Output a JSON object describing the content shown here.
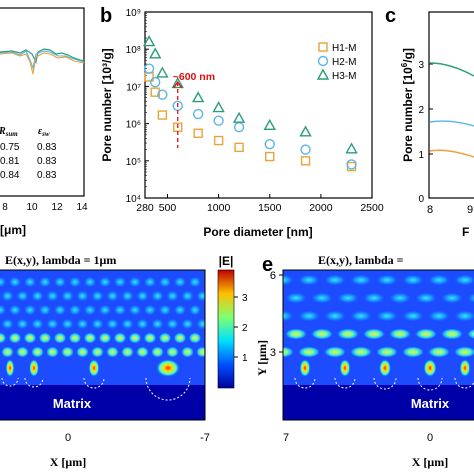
{
  "panel_letters": {
    "b": "b",
    "c": "c",
    "e": "e"
  },
  "panel_a": {
    "x_ticks": [
      "8",
      "10",
      "12",
      "14"
    ],
    "x_label_fragment": "[μm]",
    "table": {
      "headers": [
        "R",
        "ε"
      ],
      "header_subscripts": [
        "sum",
        "sw"
      ],
      "rows": [
        [
          "0.75",
          "0.83"
        ],
        [
          "0.81",
          "0.83"
        ],
        [
          "0.84",
          "0.83"
        ]
      ]
    }
  },
  "panel_c": {
    "ylabel": "Pore number [10",
    "ylabel_sup": "6",
    "ylabel_tail": "/g]",
    "y_ticks": [
      "3",
      "2",
      "1",
      "0"
    ],
    "x_ticks": [
      "8",
      "9"
    ],
    "x_label_fragment": "F"
  },
  "panel_d": {
    "title": "E(x,y),  lambda = 1μm",
    "colorbar_title": "|E|",
    "colorbar_ticks": [
      "3",
      "2",
      "1"
    ],
    "matrix_label": "Matrix",
    "x_ticks": [
      "0",
      "-7"
    ],
    "xlabel": "X [μm]"
  },
  "panel_e": {
    "title": "E(x,y),  lambda =",
    "matrix_label": "Matrix",
    "y_ticks": [
      "6",
      "3"
    ],
    "ylabel": "Y [μm]",
    "x_ticks": [
      "7",
      "0"
    ],
    "xlabel": "X [μm]"
  },
  "chart_data": {
    "type": "scatter",
    "xlabel": "Pore diameter [nm]",
    "ylabel": "Pore number [10³/g]",
    "xlim": [
      280,
      2500
    ],
    "ylim": [
      10000,
      1000000000
    ],
    "y_scale": "log",
    "x_ticks": [
      "280",
      "500",
      "1000",
      "1500",
      "2000",
      "2500"
    ],
    "y_ticks": [
      "10⁴",
      "10⁵",
      "10⁶",
      "10⁷",
      "10⁸",
      "10⁹"
    ],
    "annotation": "~600 nm",
    "annotation_x": 600,
    "legend_position": "top-right",
    "series": [
      {
        "name": "H1-M",
        "marker": "square",
        "color": "#e8a33a",
        "x": [
          320,
          380,
          450,
          600,
          800,
          1000,
          1200,
          1500,
          1850,
          2300
        ],
        "y": [
          18000000,
          7000000,
          1700000,
          800000,
          550000,
          350000,
          230000,
          130000,
          100000,
          70000
        ]
      },
      {
        "name": "H2-M",
        "marker": "circle",
        "color": "#5bb4e6",
        "x": [
          320,
          380,
          450,
          600,
          800,
          1000,
          1200,
          1500,
          1850,
          2300
        ],
        "y": [
          30000000,
          13000000,
          6000000,
          3000000,
          1800000,
          1200000,
          800000,
          280000,
          200000,
          80000
        ]
      },
      {
        "name": "H3-M",
        "marker": "triangle",
        "color": "#2a9d7c",
        "x": [
          320,
          380,
          450,
          600,
          800,
          1000,
          1200,
          1500,
          1850,
          2300
        ],
        "y": [
          160000000,
          75000000,
          23000000,
          12000000,
          5000000,
          2700000,
          1400000,
          900000,
          600000,
          210000
        ]
      }
    ]
  }
}
